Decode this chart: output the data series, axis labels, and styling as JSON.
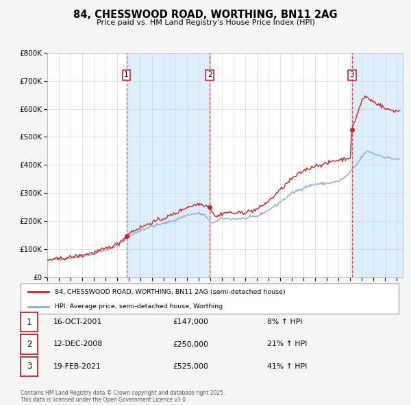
{
  "title": "84, CHESSWOOD ROAD, WORTHING, BN11 2AG",
  "subtitle": "Price paid vs. HM Land Registry's House Price Index (HPI)",
  "legend_label_red": "84, CHESSWOOD ROAD, WORTHING, BN11 2AG (semi-detached house)",
  "legend_label_blue": "HPI: Average price, semi-detached house, Worthing",
  "footer": "Contains HM Land Registry data © Crown copyright and database right 2025.\nThis data is licensed under the Open Government Licence v3.0.",
  "transaction_display": [
    {
      "num": 1,
      "date_str": "16-OCT-2001",
      "price_str": "£147,000",
      "pct_str": "8% ↑ HPI"
    },
    {
      "num": 2,
      "date_str": "12-DEC-2008",
      "price_str": "£250,000",
      "pct_str": "21% ↑ HPI"
    },
    {
      "num": 3,
      "date_str": "19-FEB-2021",
      "price_str": "£525,000",
      "pct_str": "41% ↑ HPI"
    }
  ],
  "trans_years": [
    2001.79,
    2008.95,
    2021.13
  ],
  "trans_prices": [
    147000,
    250000,
    525000
  ],
  "ylim": [
    0,
    800000
  ],
  "yticks": [
    0,
    100000,
    200000,
    300000,
    400000,
    500000,
    600000,
    700000,
    800000
  ],
  "ytick_labels": [
    "£0",
    "£100K",
    "£200K",
    "£300K",
    "£400K",
    "£500K",
    "£600K",
    "£700K",
    "£800K"
  ],
  "xmin": 1995.0,
  "xmax": 2025.5,
  "background_color": "#f5f5f5",
  "plot_bg_color": "#ffffff",
  "red_color": "#cc2222",
  "blue_color": "#88aacc",
  "shade_color": "#ddeeff",
  "vline_color": "#dd3333",
  "grid_color": "#cccccc"
}
